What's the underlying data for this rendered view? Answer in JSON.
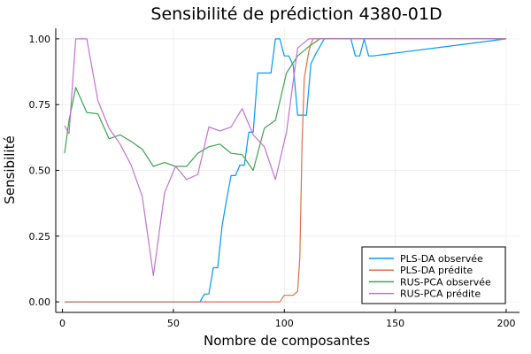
{
  "chart_data": {
    "type": "line",
    "title": "Sensibilité de prédiction 4380-01D",
    "xlabel": "Nombre de composantes",
    "ylabel": "Sensibilité",
    "xlim": [
      -3,
      206
    ],
    "ylim": [
      -0.04,
      1.04
    ],
    "xticks": [
      0,
      50,
      100,
      150,
      200
    ],
    "yticks": [
      0.0,
      0.25,
      0.5,
      0.75,
      1.0
    ],
    "xtick_labels": [
      "0",
      "50",
      "100",
      "150",
      "200"
    ],
    "ytick_labels": [
      "0.00",
      "0.25",
      "0.50",
      "0.75",
      "1.00"
    ],
    "grid": true,
    "legend_position": "bottom-right",
    "series": [
      {
        "name": "PLS-DA observée",
        "color": "#009af9",
        "x": [
          1,
          60,
          62,
          64,
          66,
          68,
          70,
          72,
          74,
          76,
          78,
          80,
          82,
          84,
          86,
          88,
          90,
          92,
          94,
          96,
          98,
          100,
          102,
          104,
          106,
          108,
          110,
          112,
          114,
          116,
          118,
          120,
          130,
          132,
          134,
          136,
          138,
          140,
          200
        ],
        "y": [
          0.0,
          0.0,
          0.0,
          0.03,
          0.03,
          0.13,
          0.13,
          0.29,
          0.39,
          0.48,
          0.48,
          0.52,
          0.52,
          0.645,
          0.645,
          0.87,
          0.87,
          0.87,
          0.87,
          1.0,
          1.0,
          0.935,
          0.935,
          0.9,
          0.71,
          0.71,
          0.71,
          0.905,
          0.94,
          0.97,
          1.0,
          1.0,
          1.0,
          0.935,
          0.935,
          1.0,
          0.935,
          0.935,
          1.0
        ]
      },
      {
        "name": "PLS-DA prédite",
        "color": "#e26f46",
        "x": [
          1,
          98,
          100,
          102,
          104,
          106,
          107,
          108,
          109,
          110,
          111,
          112,
          113,
          115,
          118,
          200
        ],
        "y": [
          0.0,
          0.0,
          0.025,
          0.025,
          0.025,
          0.04,
          0.17,
          0.6,
          0.85,
          0.9,
          0.95,
          0.98,
          1.0,
          1.0,
          1.0,
          1.0
        ]
      },
      {
        "name": "RUS-PCA observée",
        "color": "#3da44d",
        "x": [
          1,
          3,
          6,
          11,
          16,
          21,
          26,
          31,
          36,
          41,
          46,
          51,
          56,
          61,
          66,
          71,
          76,
          81,
          86,
          91,
          96,
          101,
          106,
          111,
          116,
          121,
          200
        ],
        "y": [
          0.565,
          0.69,
          0.815,
          0.72,
          0.715,
          0.62,
          0.635,
          0.61,
          0.58,
          0.515,
          0.53,
          0.515,
          0.515,
          0.565,
          0.59,
          0.6,
          0.565,
          0.56,
          0.5,
          0.66,
          0.69,
          0.87,
          0.935,
          0.97,
          1.0,
          1.0,
          1.0
        ]
      },
      {
        "name": "RUS-PCA prédite",
        "color": "#c271d2",
        "x": [
          1,
          3,
          6,
          11,
          16,
          21,
          26,
          31,
          36,
          41,
          46,
          51,
          56,
          61,
          66,
          71,
          76,
          81,
          86,
          91,
          96,
          101,
          106,
          111,
          116,
          121,
          200
        ],
        "y": [
          0.67,
          0.64,
          1.0,
          1.0,
          0.765,
          0.66,
          0.6,
          0.52,
          0.4,
          0.1,
          0.415,
          0.515,
          0.465,
          0.485,
          0.665,
          0.65,
          0.665,
          0.735,
          0.635,
          0.59,
          0.465,
          0.645,
          0.965,
          1.0,
          1.0,
          1.0,
          1.0
        ]
      }
    ]
  }
}
